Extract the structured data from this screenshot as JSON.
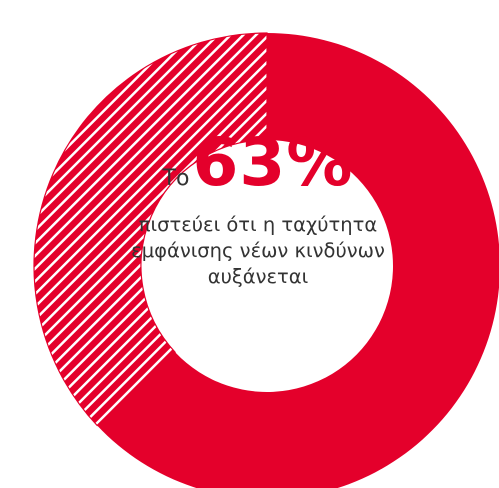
{
  "chart_data": {
    "type": "pie",
    "style": "donut",
    "slices": [
      {
        "label": "",
        "value": 63,
        "pattern": "solid",
        "color": "#e4002b"
      },
      {
        "label": "",
        "value": 37,
        "pattern": "hatched",
        "color": "#e4002b"
      }
    ]
  },
  "center": {
    "prefix": "Το",
    "value": "63%",
    "caption_lines": [
      "πιστεύει ότι η ταχύτητα",
      "εμφάνισης νέων κινδύνων",
      "αυξάνεται"
    ]
  },
  "colors": {
    "accent": "#e4002b",
    "text": "#333333"
  }
}
